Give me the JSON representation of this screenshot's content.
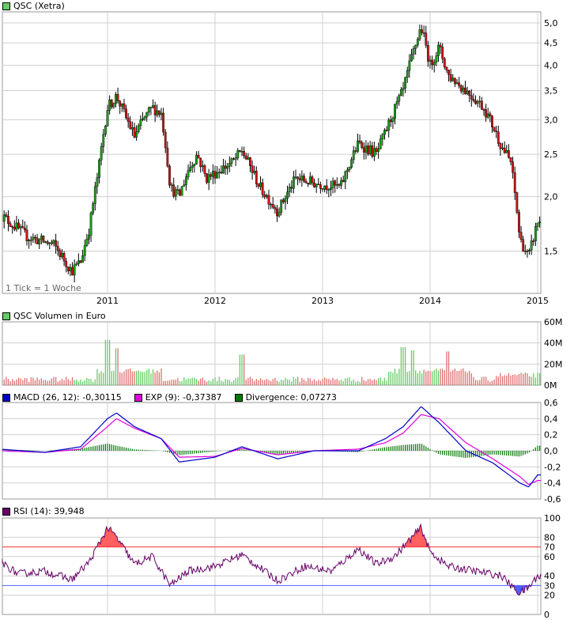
{
  "colors": {
    "price_up": "#14a014",
    "price_down": "#c81414",
    "vol_up": "#66cc66",
    "vol_down": "#e07070",
    "macd": "#0000c8",
    "exp": "#e000e0",
    "divergence": "#007800",
    "rsi": "#660066",
    "rsi_high": "#ff6060",
    "rsi_low": "#5060ff",
    "grid": "#d0d0d0"
  },
  "panels": {
    "price": {
      "legend": {
        "label": "QSC (Xetra)",
        "color": "#66cc66"
      },
      "note": "1 Tick = 1 Woche",
      "y_ticks": [
        "5,0",
        "4,5",
        "4,0",
        "3,5",
        "3,0",
        "2,5",
        "2,0",
        "1,5"
      ],
      "x_ticks": [
        "2011",
        "2012",
        "2013",
        "2014",
        "2015"
      ]
    },
    "volume": {
      "legend": {
        "label": "QSC Volumen in Euro",
        "color": "#66cc66"
      },
      "y_ticks": [
        "60M",
        "40M",
        "20M",
        "0M"
      ]
    },
    "macd": {
      "legend": [
        {
          "label": "MACD (26, 12): -0,30115",
          "color": "#0000c8"
        },
        {
          "label": "EXP (9): -0,37387",
          "color": "#e000e0"
        },
        {
          "label": "Divergence: 0,07273",
          "color": "#007800"
        }
      ],
      "y_ticks": [
        "0,6",
        "0,4",
        "0,2",
        "0,0",
        "-0,2",
        "-0,4",
        "-0,6"
      ]
    },
    "rsi": {
      "legend": {
        "label": "RSI (14): 39,948",
        "color": "#660066"
      },
      "y_ticks": [
        "100",
        "80",
        "70",
        "60",
        "40",
        "30",
        "20",
        "0"
      ]
    }
  },
  "chart_data": [
    {
      "type": "candlestick",
      "title": "QSC (Xetra)",
      "x_ticks": [
        "2011",
        "2012",
        "2013",
        "2014",
        "2015"
      ],
      "y_scale": "log",
      "ylim": [
        1.2,
        5.3
      ],
      "price_path": [
        [
          "2010-01",
          1.82
        ],
        [
          "2010-04",
          1.62
        ],
        [
          "2010-07",
          1.55
        ],
        [
          "2010-09",
          1.35
        ],
        [
          "2010-10",
          1.42
        ],
        [
          "2010-11",
          1.7
        ],
        [
          "2010-12",
          2.3
        ],
        [
          "2011-01",
          3.2
        ],
        [
          "2011-02",
          3.4
        ],
        [
          "2011-03",
          3.05
        ],
        [
          "2011-04",
          2.75
        ],
        [
          "2011-05",
          3.0
        ],
        [
          "2011-06",
          3.2
        ],
        [
          "2011-07",
          3.1
        ],
        [
          "2011-08",
          2.1
        ],
        [
          "2011-09",
          2.0
        ],
        [
          "2011-10",
          2.3
        ],
        [
          "2011-11",
          2.5
        ],
        [
          "2011-12",
          2.2
        ],
        [
          "2012-03",
          2.4
        ],
        [
          "2012-04",
          2.55
        ],
        [
          "2012-06",
          2.1
        ],
        [
          "2012-08",
          1.85
        ],
        [
          "2012-10",
          2.2
        ],
        [
          "2012-12",
          2.15
        ],
        [
          "2013-03",
          2.1
        ],
        [
          "2013-05",
          2.65
        ],
        [
          "2013-07",
          2.5
        ],
        [
          "2013-08",
          2.8
        ],
        [
          "2013-10",
          3.5
        ],
        [
          "2013-11",
          4.2
        ],
        [
          "2013-12",
          4.9
        ],
        [
          "2014-01",
          4.0
        ],
        [
          "2014-02",
          4.4
        ],
        [
          "2014-03",
          3.8
        ],
        [
          "2014-05",
          3.5
        ],
        [
          "2014-07",
          3.2
        ],
        [
          "2014-08",
          2.9
        ],
        [
          "2014-09",
          2.6
        ],
        [
          "2014-10",
          2.4
        ],
        [
          "2014-11",
          1.6
        ],
        [
          "2014-12",
          1.45
        ],
        [
          "2015-01",
          1.75
        ]
      ]
    },
    {
      "type": "bar",
      "title": "QSC Volumen in Euro",
      "ylim": [
        0,
        60
      ],
      "unit": "M",
      "spikes": [
        [
          "2011-01",
          43
        ],
        [
          "2011-02",
          35
        ],
        [
          "2012-04",
          29
        ],
        [
          "2013-10",
          36
        ],
        [
          "2013-11",
          33
        ],
        [
          "2014-03",
          32
        ]
      ]
    },
    {
      "type": "line",
      "title": "MACD",
      "ylim": [
        -0.6,
        0.6
      ],
      "series": [
        {
          "name": "MACD (26, 12)",
          "last": -0.30115,
          "points": [
            [
              "2010-01",
              0.02
            ],
            [
              "2010-06",
              -0.02
            ],
            [
              "2010-10",
              0.05
            ],
            [
              "2011-01",
              0.4
            ],
            [
              "2011-02",
              0.47
            ],
            [
              "2011-04",
              0.3
            ],
            [
              "2011-07",
              0.15
            ],
            [
              "2011-09",
              -0.14
            ],
            [
              "2012-01",
              -0.08
            ],
            [
              "2012-04",
              0.05
            ],
            [
              "2012-08",
              -0.1
            ],
            [
              "2012-12",
              0.0
            ],
            [
              "2013-05",
              0.0
            ],
            [
              "2013-08",
              0.15
            ],
            [
              "2013-10",
              0.3
            ],
            [
              "2013-12",
              0.55
            ],
            [
              "2014-02",
              0.35
            ],
            [
              "2014-05",
              0.0
            ],
            [
              "2014-08",
              -0.15
            ],
            [
              "2014-11",
              -0.4
            ],
            [
              "2014-12",
              -0.45
            ],
            [
              "2015-01",
              -0.3
            ]
          ]
        },
        {
          "name": "EXP (9)",
          "last": -0.37387,
          "points": [
            [
              "2010-01",
              0.0
            ],
            [
              "2010-06",
              -0.02
            ],
            [
              "2010-10",
              0.02
            ],
            [
              "2011-01",
              0.3
            ],
            [
              "2011-02",
              0.4
            ],
            [
              "2011-04",
              0.28
            ],
            [
              "2011-07",
              0.15
            ],
            [
              "2011-09",
              -0.08
            ],
            [
              "2012-01",
              -0.07
            ],
            [
              "2012-04",
              0.03
            ],
            [
              "2012-08",
              -0.05
            ],
            [
              "2012-12",
              0.0
            ],
            [
              "2013-05",
              0.02
            ],
            [
              "2013-08",
              0.1
            ],
            [
              "2013-10",
              0.22
            ],
            [
              "2013-12",
              0.45
            ],
            [
              "2014-02",
              0.4
            ],
            [
              "2014-05",
              0.1
            ],
            [
              "2014-08",
              -0.1
            ],
            [
              "2014-11",
              -0.32
            ],
            [
              "2014-12",
              -0.42
            ],
            [
              "2015-01",
              -0.37
            ]
          ]
        },
        {
          "name": "Divergence",
          "last": 0.07273
        }
      ]
    },
    {
      "type": "line",
      "title": "RSI (14)",
      "last": 39.948,
      "ylim": [
        0,
        100
      ],
      "levels": [
        70,
        30
      ],
      "points": [
        [
          "2010-01",
          55
        ],
        [
          "2010-03",
          42
        ],
        [
          "2010-06",
          45
        ],
        [
          "2010-09",
          36
        ],
        [
          "2010-11",
          55
        ],
        [
          "2011-01",
          90
        ],
        [
          "2011-02",
          80
        ],
        [
          "2011-04",
          52
        ],
        [
          "2011-06",
          60
        ],
        [
          "2011-08",
          30
        ],
        [
          "2011-10",
          45
        ],
        [
          "2012-01",
          50
        ],
        [
          "2012-04",
          62
        ],
        [
          "2012-08",
          35
        ],
        [
          "2012-11",
          50
        ],
        [
          "2013-02",
          45
        ],
        [
          "2013-05",
          68
        ],
        [
          "2013-07",
          52
        ],
        [
          "2013-09",
          60
        ],
        [
          "2013-11",
          80
        ],
        [
          "2013-12",
          90
        ],
        [
          "2014-01",
          65
        ],
        [
          "2014-03",
          50
        ],
        [
          "2014-06",
          45
        ],
        [
          "2014-09",
          40
        ],
        [
          "2014-10",
          30
        ],
        [
          "2014-11",
          22
        ],
        [
          "2014-12",
          28
        ],
        [
          "2015-01",
          40
        ]
      ]
    }
  ]
}
